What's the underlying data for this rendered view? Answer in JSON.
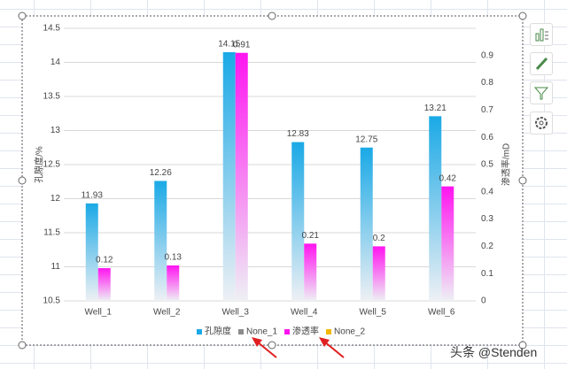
{
  "chart_data": {
    "type": "bar",
    "categories": [
      "Well_1",
      "Well_2",
      "Well_3",
      "Well_4",
      "Well_5",
      "Well_6"
    ],
    "series": [
      {
        "name": "孔隙度",
        "color": "#1aa9e6",
        "values": [
          11.93,
          12.26,
          14.15,
          12.83,
          12.75,
          13.21
        ]
      },
      {
        "name": "None_1",
        "color": "#8c8c8c",
        "values": [
          null,
          null,
          null,
          null,
          null,
          null
        ]
      },
      {
        "name": "渗透率",
        "color": "#ff14f0",
        "axis": "y2",
        "values": [
          0.12,
          0.13,
          0.91,
          0.21,
          0.2,
          0.42
        ]
      },
      {
        "name": "None_2",
        "color": "#f2b705",
        "values": [
          null,
          null,
          null,
          null,
          null,
          null
        ]
      }
    ],
    "ylabel": "孔隙度/%",
    "y2label": "渗透率/mD",
    "ylim": [
      10.5,
      14.5
    ],
    "yticks": [
      10.5,
      11,
      11.5,
      12,
      12.5,
      13,
      13.5,
      14,
      14.5
    ],
    "y2lim": [
      0,
      1
    ],
    "y2ticks": [
      0,
      0.1,
      0.2,
      0.3,
      0.4,
      0.5,
      0.6,
      0.7,
      0.8,
      0.9
    ],
    "grid": true,
    "legend": "bottom"
  }
}
